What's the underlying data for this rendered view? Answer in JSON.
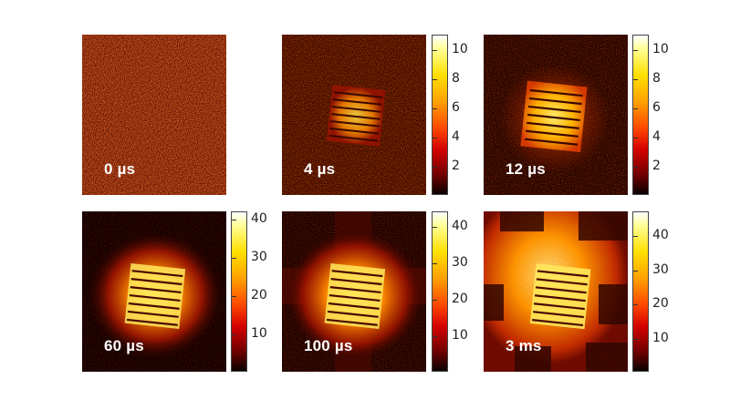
{
  "panels": [
    {
      "label": "0 µs"
    },
    {
      "label": "4 µs"
    },
    {
      "label": "12 µs"
    },
    {
      "label": "60 µs"
    },
    {
      "label": "100 µs"
    },
    {
      "label": "3 ms"
    }
  ],
  "colorbars": [
    {
      "ticks": [
        "10",
        "8",
        "6",
        "4",
        "2"
      ],
      "values": [
        10,
        8,
        6,
        4,
        2
      ],
      "max": 11
    },
    {
      "ticks": [
        "10",
        "8",
        "6",
        "4",
        "2"
      ],
      "values": [
        10,
        8,
        6,
        4,
        2
      ],
      "max": 11
    },
    {
      "ticks": [
        "40",
        "30",
        "20",
        "10"
      ],
      "values": [
        40,
        30,
        20,
        10
      ],
      "max": 42
    },
    {
      "ticks": [
        "40",
        "30",
        "20",
        "10"
      ],
      "values": [
        40,
        30,
        20,
        10
      ],
      "max": 44
    },
    {
      "ticks": [
        "40",
        "30",
        "20",
        "10"
      ],
      "values": [
        40,
        30,
        20,
        10
      ],
      "max": 47
    }
  ],
  "colors": {
    "hot_dark": "#1a0000",
    "hot_mid": "#b01000",
    "hot_bright": "#ffe000"
  }
}
